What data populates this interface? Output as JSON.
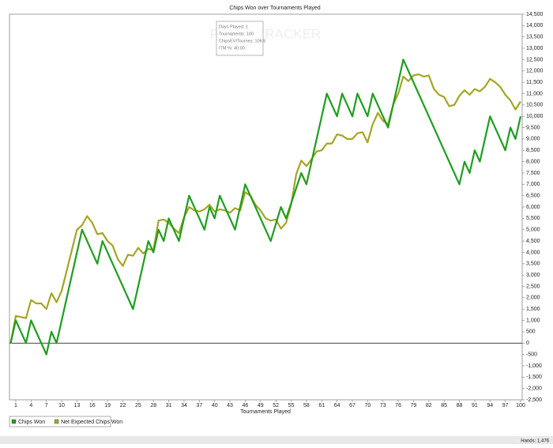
{
  "chart_data": {
    "type": "line",
    "title": "Chips Won over Tournaments Played",
    "x_label": "Tournaments Played",
    "xlim": [
      0,
      100
    ],
    "ylim": [
      -2500,
      14500
    ],
    "xticks": [
      1,
      4,
      7,
      10,
      13,
      16,
      19,
      22,
      25,
      28,
      31,
      34,
      37,
      40,
      43,
      46,
      49,
      52,
      55,
      58,
      61,
      64,
      67,
      70,
      73,
      76,
      79,
      82,
      85,
      88,
      91,
      94,
      97,
      100
    ],
    "yticks": [
      {
        "value": -2500,
        "label": "-2,500"
      },
      {
        "value": -2000,
        "label": "-2,000"
      },
      {
        "value": -1500,
        "label": "-1,500"
      },
      {
        "value": -1000,
        "label": "-1,000"
      },
      -500,
      0,
      500,
      {
        "value": 1000,
        "label": "1,000"
      },
      {
        "value": 1500,
        "label": "1,500"
      },
      {
        "value": 2000,
        "label": "2,000"
      },
      {
        "value": 2500,
        "label": "2,500"
      },
      {
        "value": 3000,
        "label": "3,000"
      },
      {
        "value": 3500,
        "label": "3,500"
      },
      {
        "value": 4000,
        "label": "4,000"
      },
      {
        "value": 4500,
        "label": "4,500"
      },
      {
        "value": 5000,
        "label": "5,000"
      },
      {
        "value": 5500,
        "label": "5,500"
      },
      {
        "value": 6000,
        "label": "6,000"
      },
      {
        "value": 6500,
        "label": "6,500"
      },
      {
        "value": 7000,
        "label": "7,000"
      },
      {
        "value": 7500,
        "label": "7,500"
      },
      {
        "value": 8000,
        "label": "8,000"
      },
      {
        "value": 8500,
        "label": "8,500"
      },
      {
        "value": 9000,
        "label": "9,000"
      },
      {
        "value": 9500,
        "label": "9,500"
      },
      {
        "value": 10000,
        "label": "10,000"
      },
      {
        "value": 10500,
        "label": "10,500"
      },
      {
        "value": 11000,
        "label": "11,000"
      },
      {
        "value": 11500,
        "label": "11,500"
      },
      {
        "value": 12000,
        "label": "12,000"
      },
      {
        "value": 12500,
        "label": "12,500"
      },
      {
        "value": 13000,
        "label": "13,000"
      },
      {
        "value": 13500,
        "label": "13,500"
      },
      {
        "value": 14000,
        "label": "14,000"
      },
      {
        "value": 14500,
        "label": "14,500"
      }
    ],
    "series": [
      {
        "name": "Chips Won",
        "color": "#1f9e1f",
        "x": [
          0,
          1,
          3,
          4,
          7,
          8,
          9,
          14,
          17,
          18,
          24,
          27,
          28,
          29,
          30,
          31,
          33,
          35,
          38,
          39,
          40,
          41,
          44,
          46,
          51,
          53,
          54,
          57,
          58,
          62,
          64,
          65,
          67,
          68,
          70,
          71,
          74,
          77,
          88,
          89,
          90,
          91,
          92,
          94,
          97,
          98,
          99,
          100
        ],
        "values": [
          0,
          1000,
          0,
          1000,
          -500,
          500,
          0,
          5000,
          3500,
          4500,
          1500,
          4500,
          4000,
          5000,
          4500,
          5500,
          4500,
          6500,
          5000,
          6000,
          5500,
          6500,
          5000,
          7000,
          4500,
          6000,
          5500,
          7500,
          7000,
          11000,
          10000,
          11000,
          10000,
          11000,
          10000,
          11000,
          9500,
          12500,
          7000,
          8000,
          7500,
          8500,
          8000,
          10000,
          8500,
          9500,
          9000,
          10000
        ]
      },
      {
        "name": "Net Expected Chips Won",
        "color": "#a5a524",
        "x": [
          0,
          1,
          3,
          4,
          5,
          6,
          7,
          8,
          9,
          10,
          11,
          13,
          14,
          15,
          16,
          17,
          18,
          19,
          20,
          21,
          22,
          23,
          24,
          25,
          26,
          27,
          28,
          29,
          30,
          31,
          32,
          33,
          34,
          35,
          36,
          37,
          38,
          39,
          40,
          41,
          42,
          43,
          44,
          45,
          46,
          47,
          48,
          49,
          50,
          51,
          52,
          53,
          54,
          55,
          56,
          57,
          58,
          59,
          60,
          61,
          62,
          63,
          64,
          65,
          66,
          67,
          68,
          69,
          70,
          71,
          72,
          73,
          74,
          75,
          76,
          77,
          78,
          79,
          80,
          81,
          82,
          83,
          84,
          85,
          86,
          87,
          88,
          89,
          90,
          91,
          92,
          93,
          94,
          95,
          96,
          97,
          98,
          99,
          100
        ],
        "values": [
          0,
          1200,
          1100,
          1900,
          1750,
          1750,
          1500,
          2200,
          1800,
          2300,
          3200,
          5000,
          5200,
          5600,
          5300,
          4800,
          4850,
          4500,
          4300,
          3700,
          3400,
          3900,
          3850,
          4200,
          3950,
          4150,
          4100,
          5400,
          5450,
          5300,
          5050,
          4850,
          5550,
          6000,
          5850,
          5800,
          5900,
          6100,
          5800,
          5900,
          5850,
          5750,
          5950,
          5850,
          6650,
          6500,
          6100,
          5850,
          5500,
          5400,
          5450,
          5050,
          5300,
          6100,
          7450,
          8050,
          7800,
          8100,
          8450,
          8500,
          8800,
          8800,
          9200,
          9150,
          9000,
          9000,
          9250,
          9300,
          8850,
          9650,
          10150,
          9800,
          9650,
          10500,
          11000,
          11750,
          11550,
          11800,
          11850,
          11750,
          11800,
          11200,
          10950,
          10850,
          10450,
          10500,
          10900,
          11150,
          10950,
          11200,
          11100,
          11300,
          11650,
          11500,
          11300,
          10950,
          10700,
          10300,
          10650
        ]
      }
    ],
    "tooltip": [
      "Days Played: 1",
      "Tournaments: 100",
      "ChipsEV/Tourney: 106.5",
      "ITM %: 40.00"
    ],
    "watermark": "POKERTRACKER",
    "status": "Hands: 1,476"
  }
}
